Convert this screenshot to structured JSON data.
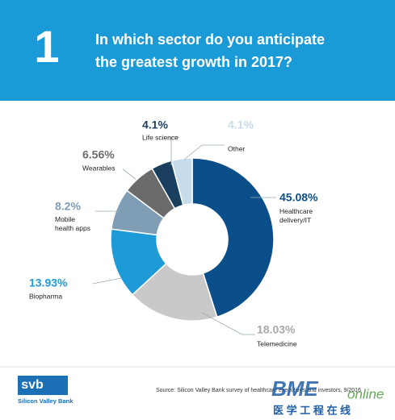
{
  "chart_data": {
    "type": "donut",
    "number": "1",
    "title": "In which sector do you anticipate\nthe greatest growth in 2017?",
    "categories": [
      "Healthcare\ndelivery/IT",
      "Telemedicine",
      "Biopharma",
      "Mobile\nhealth apps",
      "Wearables",
      "Life science",
      "Other"
    ],
    "values": [
      45.08,
      18.03,
      13.93,
      8.2,
      6.56,
      4.1,
      4.1
    ],
    "value_labels": [
      "45.08%",
      "18.03%",
      "13.93%",
      "8.2%",
      "6.56%",
      "4.1%",
      "4.1%"
    ],
    "colors": [
      "#0b4f8a",
      "#c9c9c9",
      "#1e9bd7",
      "#7f9db5",
      "#6b6b6b",
      "#1b3f5f",
      "#c6dcea"
    ],
    "source": "Source: Silicon Valley Bank survey of healthcare executives and investors, 9/2016",
    "logo": {
      "mark": "svb",
      "name": "Silicon Valley Bank"
    },
    "watermark": {
      "brand": "BME",
      "suffix": "online",
      "chinese": "医 学 工 程 在 线"
    }
  }
}
